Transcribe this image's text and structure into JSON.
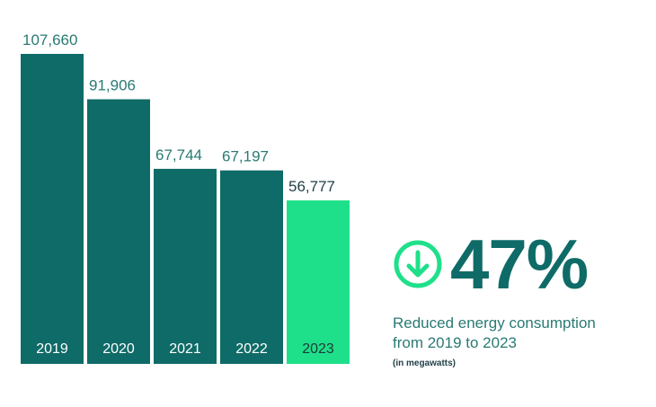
{
  "chart_data": {
    "type": "bar",
    "categories": [
      "2019",
      "2020",
      "2021",
      "2022",
      "2023"
    ],
    "values": [
      107660,
      91906,
      67744,
      67197,
      56777
    ],
    "value_labels": [
      "107,660",
      "91,906",
      "67,744",
      "67,197",
      "56,777"
    ],
    "ylim": [
      0,
      107660
    ],
    "grid": false,
    "colors": {
      "bar": "#0f6b67",
      "highlight_bar": "#1fe08a",
      "value_label": "#2a7a74",
      "highlight_value_label": "#23414a",
      "year_label": "#ffffff",
      "highlight_year_label": "#1d3a3a"
    }
  },
  "stat": {
    "percent": "47%",
    "icon": "arrow-down-circle-icon",
    "description_line1": "Reduced energy consumption",
    "description_line2": "from 2019 to 2023",
    "note": "(in megawatts)",
    "colors": {
      "percent": "#0f6b67",
      "icon": "#1fe08a",
      "description": "#2a7a74",
      "note": "#23414a"
    }
  }
}
